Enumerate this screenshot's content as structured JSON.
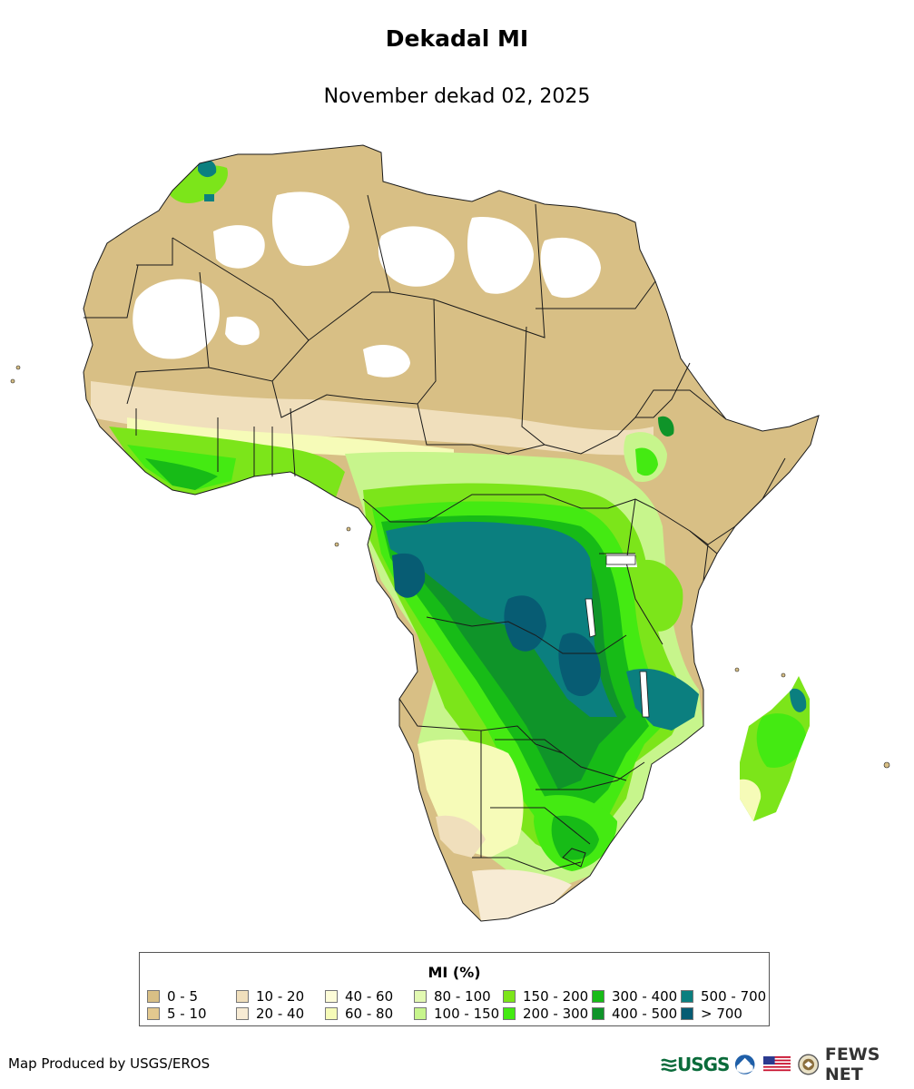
{
  "map": {
    "title": "Dekadal MI",
    "subtitle": "November dekad 02, 2025",
    "variable": "MI (%)",
    "region": "Africa"
  },
  "legend": {
    "title": "MI (%)",
    "classes": [
      {
        "label": "0 - 5",
        "color": "#d8bf85"
      },
      {
        "label": "5 - 10",
        "color": "#e3c98f"
      },
      {
        "label": "10 - 20",
        "color": "#f0dfbc"
      },
      {
        "label": "20 - 40",
        "color": "#f7ebd4"
      },
      {
        "label": "40 - 60",
        "color": "#fdfcd8"
      },
      {
        "label": "60 - 80",
        "color": "#f6fbb8"
      },
      {
        "label": "80 - 100",
        "color": "#e2f9b2"
      },
      {
        "label": "100 - 150",
        "color": "#c7f58c"
      },
      {
        "label": "150 - 200",
        "color": "#7ce51a"
      },
      {
        "label": "200 - 300",
        "color": "#44ea12"
      },
      {
        "label": "300 - 400",
        "color": "#17bb17"
      },
      {
        "label": "400 - 500",
        "color": "#0f9429"
      },
      {
        "label": "500 - 700",
        "color": "#0b7f7f"
      },
      {
        "label": "> 700",
        "color": "#075c73"
      }
    ]
  },
  "footer": {
    "credit": "Map Produced by USGS/EROS",
    "logos": [
      "usgs-logo",
      "noaa-logo",
      "us-flag-logo",
      "state-department-seal",
      "fews-net-logo"
    ],
    "usgs_text": "USGS",
    "fews_text": "FEWS NET"
  },
  "colors": {
    "no_data": "#ffffff",
    "border": "#1a1a1a",
    "dry": "#d8bf85",
    "very_wet": "#075c73"
  }
}
